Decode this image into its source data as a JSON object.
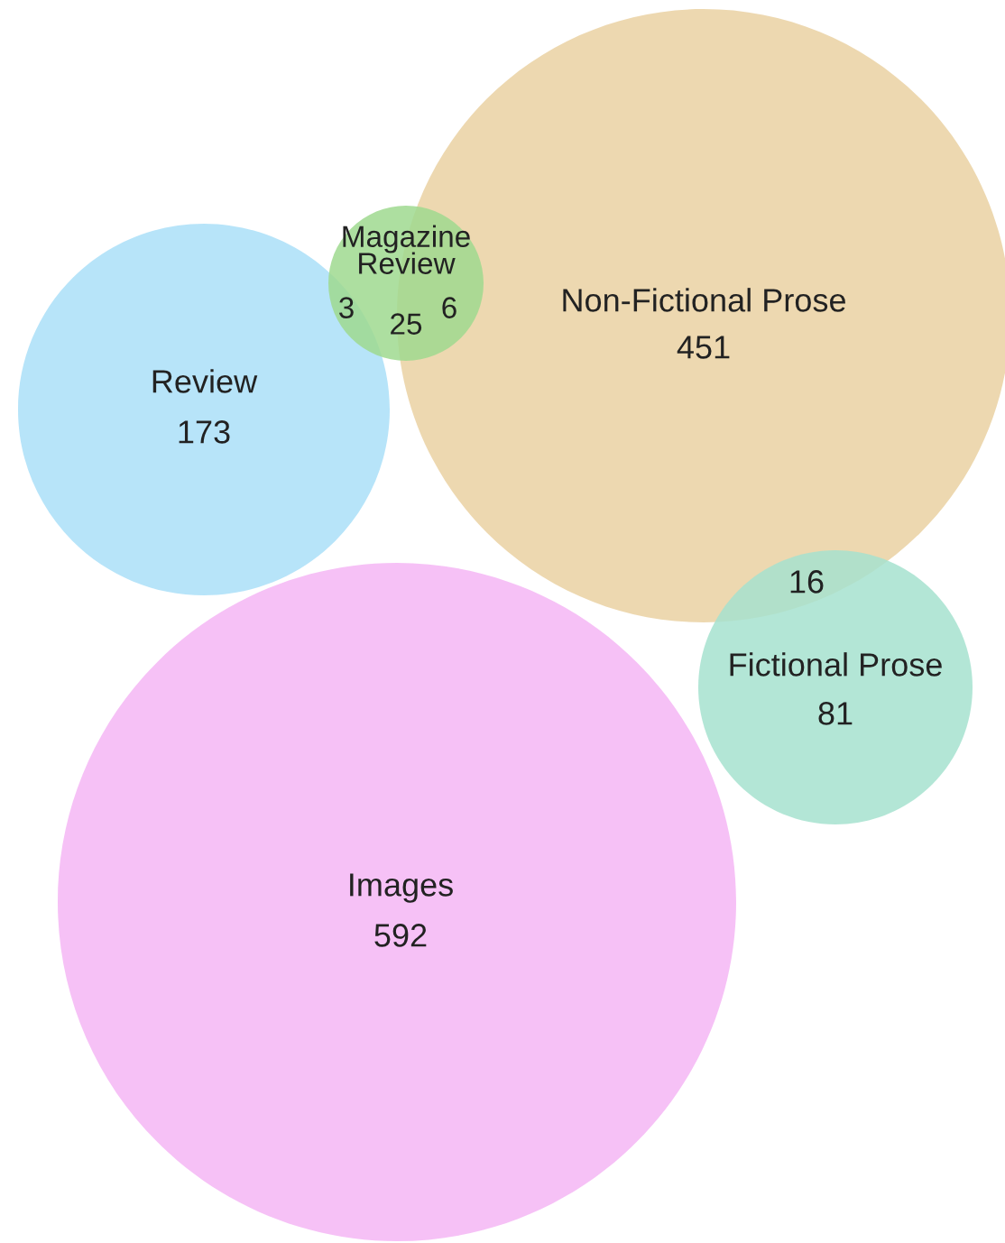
{
  "chart_data": {
    "type": "other",
    "categories": [
      "Review",
      "Magazine Review",
      "Non-Fictional Prose",
      "Fictional Prose",
      "Images"
    ],
    "values": [
      173,
      25,
      451,
      81,
      592
    ],
    "colors": [
      "#aadff8",
      "#9fd98f",
      "#ead1a2",
      "#a6e2cf",
      "#f5b6f4"
    ],
    "data_labels": true,
    "annotations": [
      "3",
      "6",
      "16"
    ]
  }
}
